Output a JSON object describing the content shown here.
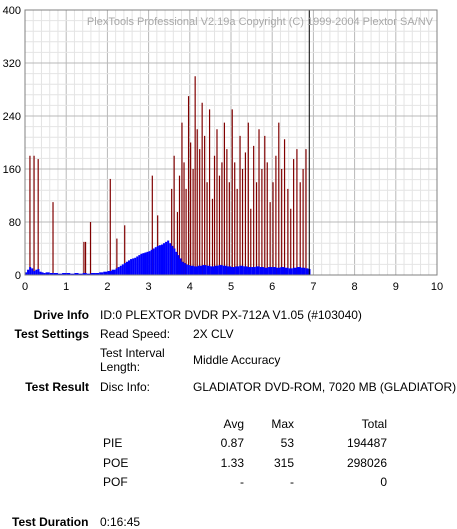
{
  "watermark": "PlexTools Professional V2.19a Copyright (C) 1999-2004 Plextor SA/NV",
  "chart_data": {
    "type": "bar",
    "title": "",
    "xlabel": "",
    "ylabel": "",
    "xlim": [
      0,
      10
    ],
    "ylim": [
      0,
      400
    ],
    "grid": true,
    "x_ticks": [
      "0",
      "1",
      "2",
      "3",
      "4",
      "5",
      "6",
      "7",
      "8",
      "9",
      "10"
    ],
    "y_ticks": [
      "0",
      "80",
      "160",
      "240",
      "320",
      "400"
    ],
    "end_marker_x": 6.9,
    "colors": {
      "poe": "#800000",
      "pie": "#0000ff",
      "grid": "#c0c0c0",
      "marker": "#000000"
    },
    "series": [
      {
        "color": "#800000",
        "x": [
          0.12,
          0.22,
          0.32,
          0.68,
          1.43,
          1.47,
          1.59,
          2.07,
          2.23,
          2.42,
          3.09,
          3.22,
          3.56,
          3.62,
          3.7,
          3.75,
          3.81,
          3.86,
          3.91,
          3.97,
          4.02,
          4.08,
          4.13,
          4.18,
          4.24,
          4.3,
          4.36,
          4.42,
          4.48,
          4.55,
          4.6,
          4.66,
          4.72,
          4.78,
          4.84,
          4.9,
          4.96,
          5.03,
          5.09,
          5.15,
          5.22,
          5.28,
          5.35,
          5.42,
          5.48,
          5.55,
          5.62,
          5.68,
          5.75,
          5.82,
          5.88,
          5.95,
          6.02,
          6.09,
          6.16,
          6.23,
          6.3,
          6.38,
          6.45,
          6.52,
          6.6,
          6.68,
          6.75,
          6.82
        ],
        "values": [
          180,
          180,
          175,
          110,
          50,
          50,
          80,
          145,
          55,
          75,
          150,
          90,
          130,
          180,
          95,
          150,
          230,
          170,
          130,
          270,
          200,
          160,
          300,
          220,
          190,
          260,
          210,
          140,
          250,
          115,
          180,
          220,
          150,
          170,
          230,
          190,
          140,
          250,
          170,
          130,
          210,
          160,
          185,
          230,
          100,
          195,
          140,
          220,
          160,
          210,
          170,
          110,
          140,
          180,
          230,
          160,
          205,
          130,
          100,
          175,
          190,
          140,
          160,
          190
        ]
      },
      {
        "color": "#0000ff",
        "x": [
          0.0,
          0.05,
          0.1,
          0.15,
          0.2,
          0.25,
          0.3,
          0.35,
          0.4,
          0.45,
          0.5,
          0.6,
          0.7,
          0.8,
          0.9,
          1.0,
          1.1,
          1.2,
          1.3,
          1.4,
          1.5,
          1.6,
          1.7,
          1.8,
          1.9,
          2.0,
          2.1,
          2.2,
          2.25,
          2.3,
          2.35,
          2.4,
          2.45,
          2.5,
          2.55,
          2.6,
          2.65,
          2.7,
          2.75,
          2.8,
          2.85,
          2.9,
          2.95,
          3.0,
          3.05,
          3.1,
          3.15,
          3.2,
          3.25,
          3.3,
          3.35,
          3.4,
          3.45,
          3.5,
          3.55,
          3.6,
          3.65,
          3.7,
          3.75,
          3.8,
          3.85,
          3.9,
          3.95,
          4.0,
          4.1,
          4.2,
          4.3,
          4.4,
          4.5,
          4.6,
          4.7,
          4.8,
          4.9,
          5.0,
          5.1,
          5.2,
          5.3,
          5.4,
          5.5,
          5.6,
          5.7,
          5.8,
          5.9,
          6.0,
          6.1,
          6.2,
          6.3,
          6.4,
          6.5,
          6.6,
          6.7,
          6.8,
          6.88
        ],
        "values": [
          4,
          8,
          12,
          10,
          6,
          8,
          9,
          5,
          4,
          3,
          4,
          3,
          3,
          2,
          3,
          3,
          2,
          3,
          2,
          3,
          2,
          3,
          3,
          4,
          5,
          6,
          8,
          10,
          12,
          14,
          16,
          18,
          20,
          22,
          24,
          25,
          26,
          28,
          30,
          32,
          33,
          34,
          35,
          36,
          38,
          40,
          42,
          44,
          45,
          46,
          48,
          50,
          52,
          48,
          44,
          40,
          35,
          30,
          25,
          20,
          18,
          16,
          15,
          14,
          13,
          14,
          15,
          14,
          13,
          14,
          15,
          14,
          13,
          12,
          13,
          14,
          13,
          12,
          12,
          13,
          12,
          11,
          12,
          12,
          11,
          12,
          11,
          10,
          11,
          12,
          11,
          10,
          9
        ]
      }
    ]
  },
  "drive_info": {
    "label": "Drive Info",
    "value": "ID:0 PLEXTOR DVDR PX-712A V1.05 (#103040)"
  },
  "test_settings": {
    "label": "Test Settings",
    "read_speed_label": "Read Speed:",
    "read_speed_value": "2X CLV",
    "interval_label_line1": "Test Interval",
    "interval_label_line2": "Length:",
    "interval_value": "Middle Accuracy"
  },
  "test_result": {
    "label": "Test Result",
    "disc_info_label": "Disc Info:",
    "disc_info_value": "GLADIATOR DVD-ROM, 7020 MB (GLADIATOR)"
  },
  "stats": {
    "headers": {
      "avg": "Avg",
      "max": "Max",
      "total": "Total"
    },
    "rows": [
      {
        "name": "PIE",
        "avg": "0.87",
        "max": "53",
        "total": "194487"
      },
      {
        "name": "POE",
        "avg": "1.33",
        "max": "315",
        "total": "298026"
      },
      {
        "name": "POF",
        "avg": "-",
        "max": "-",
        "total": "0"
      }
    ]
  },
  "duration": {
    "label": "Test Duration",
    "value": "0:16:45"
  }
}
